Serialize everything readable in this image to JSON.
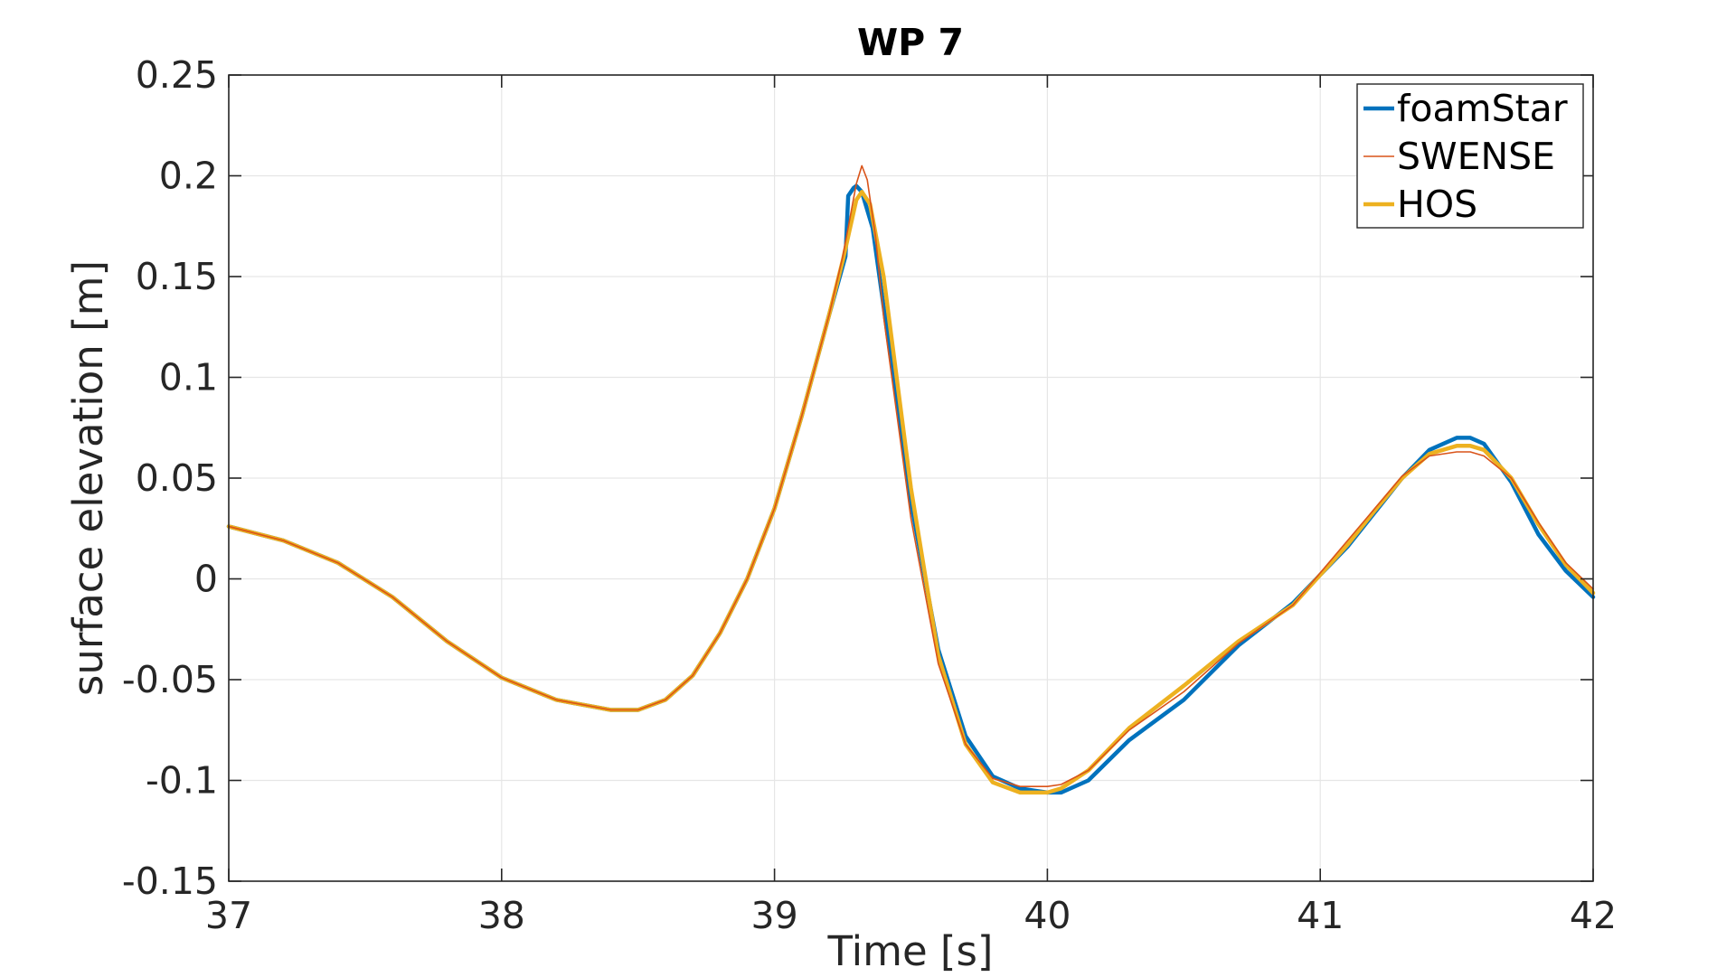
{
  "chart_data": {
    "type": "line",
    "title": "WP 7",
    "xlabel": "Time [s]",
    "ylabel": "surface elevation [m]",
    "xlim": [
      37,
      42
    ],
    "ylim": [
      -0.15,
      0.25
    ],
    "xticks": [
      37,
      38,
      39,
      40,
      41,
      42
    ],
    "xtick_labels": [
      "37",
      "38",
      "39",
      "40",
      "41",
      "42"
    ],
    "yticks": [
      -0.15,
      -0.1,
      -0.05,
      0,
      0.05,
      0.1,
      0.15,
      0.2,
      0.25
    ],
    "ytick_labels": [
      "-0.15",
      "-0.1",
      "-0.05",
      "0",
      "0.05",
      "0.1",
      "0.15",
      "0.2",
      "0.25"
    ],
    "grid": true,
    "legend_position": "top-right",
    "series": [
      {
        "name": "foamStar",
        "color": "#0072BD",
        "x": [
          37.0,
          37.2,
          37.4,
          37.6,
          37.8,
          38.0,
          38.2,
          38.4,
          38.5,
          38.6,
          38.7,
          38.8,
          38.9,
          39.0,
          39.1,
          39.2,
          39.26,
          39.27,
          39.29,
          39.3,
          39.32,
          39.36,
          39.4,
          39.5,
          39.6,
          39.7,
          39.8,
          39.9,
          40.0,
          40.05,
          40.15,
          40.3,
          40.5,
          40.7,
          40.9,
          41.0,
          41.1,
          41.2,
          41.3,
          41.4,
          41.5,
          41.55,
          41.6,
          41.7,
          41.8,
          41.9,
          42.0
        ],
        "y": [
          0.026,
          0.019,
          0.008,
          -0.009,
          -0.031,
          -0.049,
          -0.06,
          -0.065,
          -0.065,
          -0.06,
          -0.048,
          -0.027,
          0.0,
          0.035,
          0.081,
          0.131,
          0.16,
          0.19,
          0.194,
          0.195,
          0.192,
          0.174,
          0.135,
          0.038,
          -0.035,
          -0.078,
          -0.098,
          -0.104,
          -0.106,
          -0.106,
          -0.1,
          -0.08,
          -0.06,
          -0.033,
          -0.012,
          0.002,
          0.016,
          0.033,
          0.05,
          0.064,
          0.07,
          0.07,
          0.067,
          0.048,
          0.022,
          0.004,
          -0.009
        ]
      },
      {
        "name": "SWENSE",
        "color": "#D95319",
        "x": [
          37.0,
          37.2,
          37.4,
          37.6,
          37.8,
          38.0,
          38.2,
          38.4,
          38.5,
          38.6,
          38.7,
          38.8,
          38.9,
          39.0,
          39.1,
          39.2,
          39.25,
          39.3,
          39.32,
          39.34,
          39.37,
          39.4,
          39.5,
          39.6,
          39.7,
          39.8,
          39.9,
          40.0,
          40.05,
          40.15,
          40.3,
          40.5,
          40.7,
          40.9,
          41.0,
          41.1,
          41.2,
          41.3,
          41.4,
          41.5,
          41.55,
          41.6,
          41.7,
          41.8,
          41.9,
          42.0
        ],
        "y": [
          0.026,
          0.019,
          0.008,
          -0.009,
          -0.031,
          -0.049,
          -0.06,
          -0.065,
          -0.065,
          -0.06,
          -0.048,
          -0.027,
          0.0,
          0.035,
          0.081,
          0.131,
          0.16,
          0.196,
          0.205,
          0.198,
          0.17,
          0.13,
          0.03,
          -0.042,
          -0.082,
          -0.099,
          -0.103,
          -0.103,
          -0.102,
          -0.095,
          -0.075,
          -0.056,
          -0.032,
          -0.013,
          0.003,
          0.019,
          0.035,
          0.051,
          0.061,
          0.063,
          0.063,
          0.061,
          0.05,
          0.028,
          0.008,
          -0.005
        ]
      },
      {
        "name": "HOS",
        "color": "#EDB120",
        "x": [
          37.0,
          37.2,
          37.4,
          37.6,
          37.8,
          38.0,
          38.2,
          38.4,
          38.5,
          38.6,
          38.7,
          38.8,
          38.9,
          39.0,
          39.1,
          39.2,
          39.25,
          39.3,
          39.32,
          39.35,
          39.4,
          39.5,
          39.6,
          39.7,
          39.8,
          39.9,
          40.0,
          40.05,
          40.15,
          40.3,
          40.5,
          40.7,
          40.9,
          41.0,
          41.1,
          41.2,
          41.3,
          41.4,
          41.5,
          41.55,
          41.6,
          41.7,
          41.8,
          41.9,
          42.0
        ],
        "y": [
          0.026,
          0.019,
          0.008,
          -0.009,
          -0.031,
          -0.049,
          -0.06,
          -0.065,
          -0.065,
          -0.06,
          -0.048,
          -0.027,
          0.0,
          0.035,
          0.081,
          0.131,
          0.158,
          0.188,
          0.192,
          0.186,
          0.15,
          0.045,
          -0.038,
          -0.082,
          -0.101,
          -0.106,
          -0.106,
          -0.104,
          -0.095,
          -0.074,
          -0.053,
          -0.031,
          -0.013,
          0.002,
          0.017,
          0.034,
          0.05,
          0.062,
          0.066,
          0.066,
          0.064,
          0.05,
          0.027,
          0.007,
          -0.007
        ]
      }
    ]
  }
}
